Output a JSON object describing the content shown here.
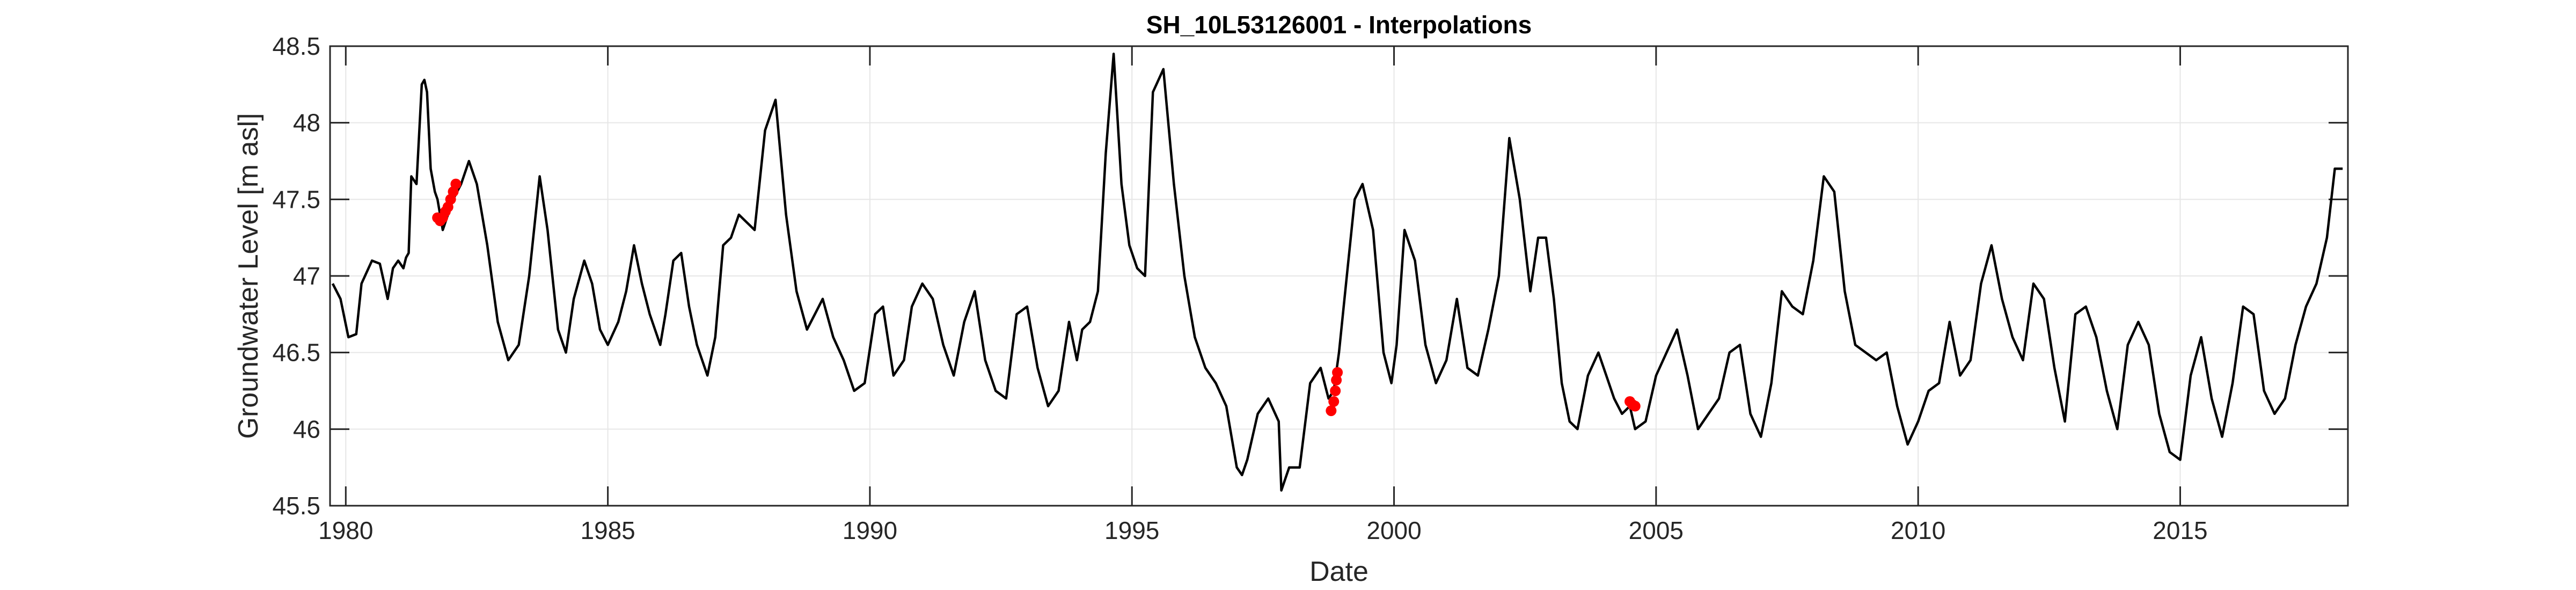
{
  "chart_data": {
    "type": "line",
    "title": "SH_10L53126001 - Interpolations",
    "xlabel": "Date",
    "ylabel": "Groundwater Level [m asl]",
    "xlim": [
      1979.7,
      2018.2
    ],
    "ylim": [
      45.5,
      48.5
    ],
    "xticks": [
      1980,
      1985,
      1990,
      1995,
      2000,
      2005,
      2010,
      2015
    ],
    "yticks": [
      45.5,
      46,
      46.5,
      47,
      47.5,
      48,
      48.5
    ],
    "xtick_labels": [
      "1980",
      "1985",
      "1990",
      "1995",
      "2000",
      "2005",
      "2010",
      "2015"
    ],
    "ytick_labels": [
      "45.5",
      "46",
      "46.5",
      "47",
      "47.5",
      "48",
      "48.5"
    ],
    "grid": true,
    "colors": {
      "series": "#000000",
      "interpolated": "#ff0000",
      "grid": "#e6e6e6",
      "axes": "#262626"
    },
    "series": [
      {
        "x": [
          1979.75,
          1979.9,
          1980.05,
          1980.2,
          1980.3,
          1980.5,
          1980.65,
          1980.8,
          1980.9,
          1981.0,
          1981.1,
          1981.15,
          1981.2,
          1981.25,
          1981.35,
          1981.45,
          1981.5,
          1981.55,
          1981.62,
          1981.7,
          1981.75,
          1981.85,
          1981.95,
          1982.05,
          1982.2,
          1982.35,
          1982.5,
          1982.7,
          1982.9,
          1983.1,
          1983.3,
          1983.5,
          1983.7,
          1983.85,
          1984.05,
          1984.2,
          1984.35,
          1984.55,
          1984.7,
          1984.85,
          1985.0,
          1985.2,
          1985.35,
          1985.5,
          1985.65,
          1985.8,
          1986.0,
          1986.1,
          1986.25,
          1986.4,
          1986.55,
          1986.7,
          1986.9,
          1987.05,
          1987.2,
          1987.35,
          1987.5,
          1987.65,
          1987.8,
          1988.0,
          1988.2,
          1988.4,
          1988.6,
          1988.8,
          1988.95,
          1989.1,
          1989.3,
          1989.5,
          1989.7,
          1989.9,
          1990.1,
          1990.25,
          1990.45,
          1990.65,
          1990.8,
          1991.0,
          1991.2,
          1991.4,
          1991.6,
          1991.8,
          1992.0,
          1992.2,
          1992.4,
          1992.6,
          1992.8,
          1993.0,
          1993.2,
          1993.4,
          1993.6,
          1993.8,
          1993.95,
          1994.05,
          1994.2,
          1994.35,
          1994.5,
          1994.65,
          1994.8,
          1994.95,
          1995.1,
          1995.25,
          1995.4,
          1995.6,
          1995.8,
          1996.0,
          1996.2,
          1996.4,
          1996.6,
          1996.8,
          1997.0,
          1997.1,
          1997.2,
          1997.4,
          1997.6,
          1997.8,
          1997.85,
          1998.0,
          1998.2,
          1998.4,
          1998.6,
          1998.75,
          1998.85,
          1998.95,
          1999.1,
          1999.25,
          1999.4,
          1999.6,
          1999.8,
          1999.95,
          2000.05,
          2000.2,
          2000.4,
          2000.6,
          2000.8,
          2001.0,
          2001.2,
          2001.4,
          2001.6,
          2001.8,
          2002.0,
          2002.2,
          2002.4,
          2002.6,
          2002.75,
          2002.9,
          2003.05,
          2003.2,
          2003.35,
          2003.5,
          2003.7,
          2003.9,
          2004.05,
          2004.2,
          2004.35,
          2004.5,
          2004.6,
          2004.8,
          2005.0,
          2005.2,
          2005.4,
          2005.6,
          2005.8,
          2006.0,
          2006.2,
          2006.4,
          2006.6,
          2006.8,
          2007.0,
          2007.2,
          2007.4,
          2007.6,
          2007.8,
          2008.0,
          2008.2,
          2008.4,
          2008.6,
          2008.8,
          2009.0,
          2009.2,
          2009.4,
          2009.6,
          2009.8,
          2010.0,
          2010.2,
          2010.4,
          2010.6,
          2010.8,
          2011.0,
          2011.2,
          2011.4,
          2011.6,
          2011.8,
          2012.0,
          2012.2,
          2012.4,
          2012.6,
          2012.8,
          2013.0,
          2013.2,
          2013.4,
          2013.6,
          2013.8,
          2014.0,
          2014.2,
          2014.4,
          2014.6,
          2014.8,
          2015.0,
          2015.2,
          2015.4,
          2015.6,
          2015.8,
          2016.0,
          2016.2,
          2016.4,
          2016.6,
          2016.8,
          2017.0,
          2017.2,
          2017.4,
          2017.6,
          2017.8,
          2017.95,
          2018.1
        ],
        "y": [
          46.95,
          46.85,
          46.6,
          46.62,
          46.95,
          47.1,
          47.08,
          46.85,
          47.05,
          47.1,
          47.05,
          47.12,
          47.15,
          47.65,
          47.6,
          48.25,
          48.28,
          48.2,
          47.7,
          47.55,
          47.5,
          47.3,
          47.4,
          47.5,
          47.6,
          47.75,
          47.6,
          47.2,
          46.7,
          46.45,
          46.55,
          47.0,
          47.65,
          47.3,
          46.65,
          46.5,
          46.85,
          47.1,
          46.95,
          46.65,
          46.55,
          46.7,
          46.9,
          47.2,
          46.95,
          46.75,
          46.55,
          46.75,
          47.1,
          47.15,
          46.8,
          46.55,
          46.35,
          46.6,
          47.2,
          47.25,
          47.4,
          47.35,
          47.3,
          47.95,
          48.15,
          47.4,
          46.9,
          46.65,
          46.75,
          46.85,
          46.6,
          46.45,
          46.25,
          46.3,
          46.75,
          46.8,
          46.35,
          46.45,
          46.8,
          46.95,
          46.85,
          46.55,
          46.35,
          46.7,
          46.9,
          46.45,
          46.25,
          46.2,
          46.75,
          46.8,
          46.4,
          46.15,
          46.25,
          46.7,
          46.45,
          46.65,
          46.7,
          46.9,
          47.8,
          48.45,
          47.6,
          47.2,
          47.05,
          47.0,
          48.2,
          48.35,
          47.6,
          47.0,
          46.6,
          46.4,
          46.3,
          46.15,
          45.75,
          45.7,
          45.8,
          46.1,
          46.2,
          46.05,
          45.6,
          45.75,
          45.75,
          46.3,
          46.4,
          46.2,
          46.25,
          46.5,
          47.0,
          47.5,
          47.6,
          47.3,
          46.5,
          46.3,
          46.55,
          47.3,
          47.1,
          46.55,
          46.3,
          46.45,
          46.85,
          46.4,
          46.35,
          46.65,
          47.0,
          47.9,
          47.5,
          46.9,
          47.25,
          47.25,
          46.85,
          46.3,
          46.05,
          46.0,
          46.35,
          46.5,
          46.35,
          46.2,
          46.1,
          46.15,
          46.0,
          46.05,
          46.35,
          46.5,
          46.65,
          46.35,
          46.0,
          46.1,
          46.2,
          46.5,
          46.55,
          46.1,
          45.95,
          46.3,
          46.9,
          46.8,
          46.75,
          47.1,
          47.65,
          47.55,
          46.9,
          46.55,
          46.5,
          46.45,
          46.5,
          46.15,
          45.9,
          46.05,
          46.25,
          46.3,
          46.7,
          46.35,
          46.45,
          46.95,
          47.2,
          46.85,
          46.6,
          46.45,
          46.95,
          46.85,
          46.4,
          46.05,
          46.75,
          46.8,
          46.6,
          46.25,
          46.0,
          46.55,
          46.7,
          46.55,
          46.1,
          45.85,
          45.8,
          46.35,
          46.6,
          46.2,
          45.95,
          46.3,
          46.8,
          46.75,
          46.25,
          46.1,
          46.2,
          46.55,
          46.8,
          46.95,
          47.25,
          47.7,
          47.7
        ]
      }
    ],
    "interpolated_points": {
      "x": [
        1981.75,
        1981.8,
        1981.85,
        1981.9,
        1981.95,
        1982.0,
        1982.05,
        1982.1,
        1998.8,
        1998.85,
        1998.88,
        1998.9,
        1998.92,
        2004.5,
        2004.55,
        2004.6
      ],
      "y": [
        47.38,
        47.36,
        47.38,
        47.42,
        47.45,
        47.5,
        47.55,
        47.6,
        46.12,
        46.18,
        46.25,
        46.32,
        46.37,
        46.18,
        46.16,
        46.15
      ]
    }
  }
}
